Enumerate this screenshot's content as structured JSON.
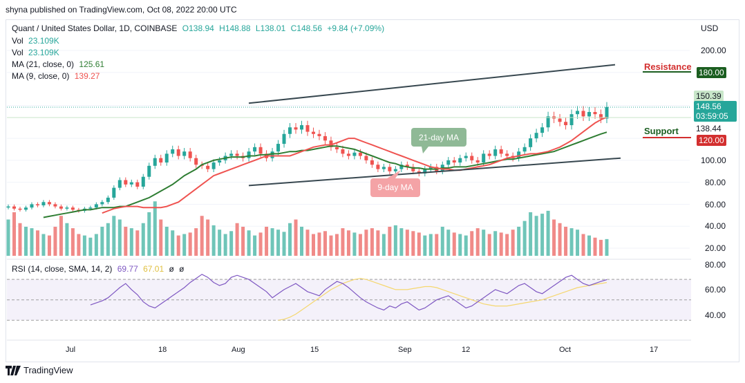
{
  "header": {
    "published": "shyna published on TradingView.com, Oct 08, 2022 20:00 UTC"
  },
  "legend": {
    "symbol": "Quant / United States Dollar, 1D, COINBASE",
    "open": "O138.94",
    "high": "H148.88",
    "low": "L138.01",
    "close": "C148.56",
    "change": "+9.84 (+7.09%)",
    "vol1_label": "Vol",
    "vol1_value": "23.109K",
    "vol2_label": "Vol",
    "vol2_value": "23.109K",
    "ma21_label": "MA (21, close, 0)",
    "ma21_value": "125.61",
    "ma9_label": "MA (9, close, 0)",
    "ma9_value": "139.27",
    "rsi_label": "RSI (14, close, SMA, 14, 2)",
    "rsi_value": "69.77",
    "rsi_sma_value": "67.01",
    "rsi_extra1": "ø",
    "rsi_extra2": "ø"
  },
  "axis": {
    "currency": "USD",
    "price_labels": [
      "200.00",
      "150.39",
      "148.56",
      "138.44",
      "100.00",
      "80.00",
      "60.00",
      "40.00",
      "20.00"
    ],
    "current_price": "148.56",
    "countdown": "03:59:05",
    "high_marker": "150.39",
    "low_marker": "138.44",
    "resistance_value": "180.00",
    "support_value": "120.00",
    "rsi_labels": [
      "80.00",
      "60.00",
      "40.00"
    ],
    "x_labels": [
      "Jul",
      "18",
      "Aug",
      "15",
      "Sep",
      "12",
      "Oct",
      "17"
    ]
  },
  "annotations": {
    "resistance": "Resistance",
    "support": "Support",
    "ma21_callout": "21-day MA",
    "ma9_callout": "9-day MA"
  },
  "colors": {
    "up": "#26a69a",
    "down": "#ef5350",
    "ma21": "#2e7d32",
    "ma9": "#ef5350",
    "rsi": "#7e57c2",
    "rsi_sma": "#f5d76e",
    "resistance": "#1b5e20",
    "support": "#d32f2f"
  },
  "footer": {
    "brand": "TradingView"
  },
  "chart_data": {
    "type": "candlestick",
    "close": [
      58,
      56,
      55,
      57,
      60,
      59,
      62,
      60,
      58,
      56,
      57,
      55,
      54,
      56,
      57,
      60,
      62,
      66,
      75,
      82,
      78,
      80,
      76,
      85,
      95,
      102,
      98,
      106,
      110,
      104,
      108,
      102,
      96,
      95,
      92,
      98,
      100,
      104,
      106,
      104,
      102,
      108,
      112,
      106,
      102,
      108,
      115,
      124,
      130,
      128,
      132,
      126,
      124,
      122,
      118,
      112,
      110,
      106,
      104,
      107,
      104,
      100,
      96,
      92,
      94,
      90,
      92,
      96,
      94,
      90,
      88,
      92,
      94,
      90,
      96,
      100,
      98,
      102,
      104,
      100,
      98,
      106,
      104,
      110,
      106,
      104,
      102,
      108,
      112,
      120,
      125,
      130,
      140,
      138,
      135,
      132,
      142,
      145,
      140,
      144,
      142,
      138,
      148.56
    ],
    "volume": [
      50,
      60,
      45,
      40,
      38,
      35,
      30,
      28,
      40,
      55,
      45,
      38,
      30,
      28,
      25,
      30,
      40,
      45,
      55,
      50,
      40,
      38,
      35,
      45,
      60,
      75,
      50,
      40,
      35,
      28,
      30,
      32,
      38,
      55,
      50,
      42,
      36,
      30,
      34,
      45,
      40,
      35,
      28,
      32,
      40,
      38,
      36,
      33,
      45,
      50,
      40,
      36,
      30,
      32,
      34,
      28,
      30,
      38,
      35,
      32,
      30,
      36,
      38,
      35,
      30,
      40,
      42,
      38,
      36,
      34,
      32,
      28,
      30,
      30,
      40,
      36,
      32,
      30,
      28,
      34,
      38,
      36,
      30,
      34,
      32,
      30,
      36,
      40,
      48,
      60,
      55,
      58,
      62,
      50,
      45,
      40,
      38,
      36,
      30,
      28,
      25,
      22,
      23
    ],
    "ma21": [
      48,
      49,
      50,
      51,
      52,
      53,
      54,
      55,
      55,
      56,
      57,
      57,
      57,
      58,
      58,
      60,
      62,
      64,
      66,
      69,
      72,
      75,
      78,
      82,
      86,
      89,
      92,
      96,
      98,
      100,
      101,
      102,
      103,
      103,
      103,
      104,
      104,
      105,
      105,
      106,
      106,
      107,
      108,
      108,
      109,
      109,
      110,
      111,
      112,
      113,
      113,
      112,
      111,
      110,
      108,
      106,
      104,
      102,
      100,
      98,
      97,
      95,
      94,
      93,
      93,
      92,
      92,
      92,
      93,
      93,
      94,
      94,
      94,
      95,
      96,
      97,
      98,
      99,
      100,
      101,
      101,
      102,
      103,
      104,
      105,
      106,
      107,
      108,
      110,
      112,
      114,
      116,
      118,
      120,
      122,
      124,
      125.61
    ],
    "ma9": [
      52,
      54,
      56,
      57,
      58,
      58,
      58,
      57,
      57,
      57,
      57,
      58,
      60,
      62,
      66,
      70,
      74,
      78,
      82,
      86,
      88,
      90,
      92,
      94,
      96,
      98,
      100,
      102,
      104,
      104,
      104,
      104,
      104,
      106,
      108,
      110,
      112,
      113,
      114,
      114,
      116,
      118,
      120,
      120,
      118,
      116,
      114,
      112,
      110,
      108,
      106,
      104,
      102,
      100,
      98,
      96,
      94,
      93,
      92,
      92,
      91,
      91,
      92,
      93,
      94,
      95,
      96,
      98,
      100,
      102,
      103,
      104,
      105,
      106,
      106,
      107,
      108,
      110,
      112,
      115,
      118,
      122,
      126,
      130,
      134,
      137,
      139.27
    ],
    "rsi": [
      45,
      47,
      49,
      52,
      57,
      62,
      66,
      60,
      55,
      48,
      44,
      42,
      46,
      50,
      54,
      58,
      62,
      67,
      71,
      75,
      72,
      67,
      64,
      66,
      72,
      74,
      72,
      70,
      66,
      62,
      58,
      52,
      56,
      60,
      63,
      66,
      62,
      58,
      56,
      54,
      60,
      64,
      68,
      66,
      62,
      57,
      52,
      48,
      45,
      42,
      40,
      44,
      42,
      46,
      48,
      44,
      40,
      42,
      46,
      50,
      52,
      54,
      50,
      46,
      42,
      44,
      48,
      52,
      56,
      60,
      58,
      56,
      60,
      64,
      66,
      62,
      58,
      56,
      60,
      64,
      68,
      72,
      74,
      70,
      66,
      64,
      66,
      68,
      69.77
    ],
    "rsi_sma": [
      30,
      31,
      33,
      36,
      40,
      44,
      48,
      52,
      56,
      60,
      63,
      66,
      68,
      70,
      71,
      70,
      68,
      66,
      64,
      62,
      60,
      60,
      60,
      61,
      62,
      63,
      63,
      62,
      60,
      58,
      56,
      54,
      52,
      50,
      48,
      46,
      45,
      44,
      44,
      44,
      45,
      46,
      47,
      48,
      49,
      50,
      52,
      54,
      56,
      58,
      60,
      62,
      63,
      64,
      65,
      66,
      67.01
    ],
    "y_price_range": [
      15,
      210
    ],
    "y_rsi_range": [
      20,
      85
    ],
    "resistance": 180,
    "support": 120
  }
}
